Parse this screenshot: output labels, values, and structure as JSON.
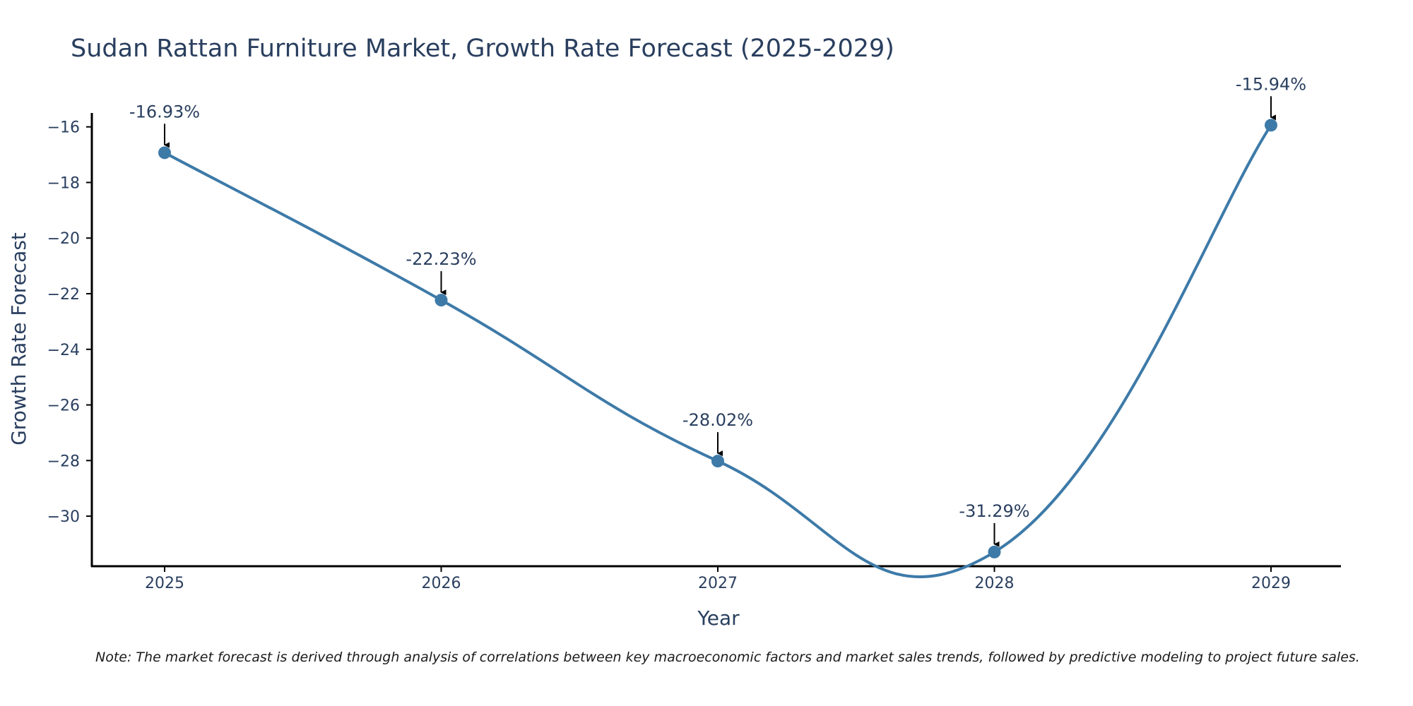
{
  "chart_data": {
    "type": "line",
    "title": "Sudan Rattan Furniture Market, Growth Rate Forecast (2025-2029)",
    "xlabel": "Year",
    "ylabel": "Growth Rate Forecast",
    "categories": [
      "2025",
      "2026",
      "2027",
      "2028",
      "2029"
    ],
    "values": [
      -16.93,
      -22.23,
      -28.02,
      -31.29,
      -15.94
    ],
    "data_labels": [
      "-16.93%",
      "-22.23%",
      "-28.02%",
      "-31.29%",
      "-15.94%"
    ],
    "ylim": [
      -31.8,
      -15.5
    ],
    "yticks": [
      -16,
      -18,
      -20,
      -22,
      -24,
      -26,
      -28,
      -30
    ],
    "ytick_labels": [
      "−16",
      "−18",
      "−20",
      "−22",
      "−24",
      "−26",
      "−28",
      "−30"
    ],
    "grid": false,
    "line_color": "#3d7aa8",
    "marker_color": "#3d7aa8"
  },
  "note": "Note: The market forecast is derived through analysis of correlations between key macroeconomic factors and market sales trends, followed by predictive modeling to project future sales."
}
